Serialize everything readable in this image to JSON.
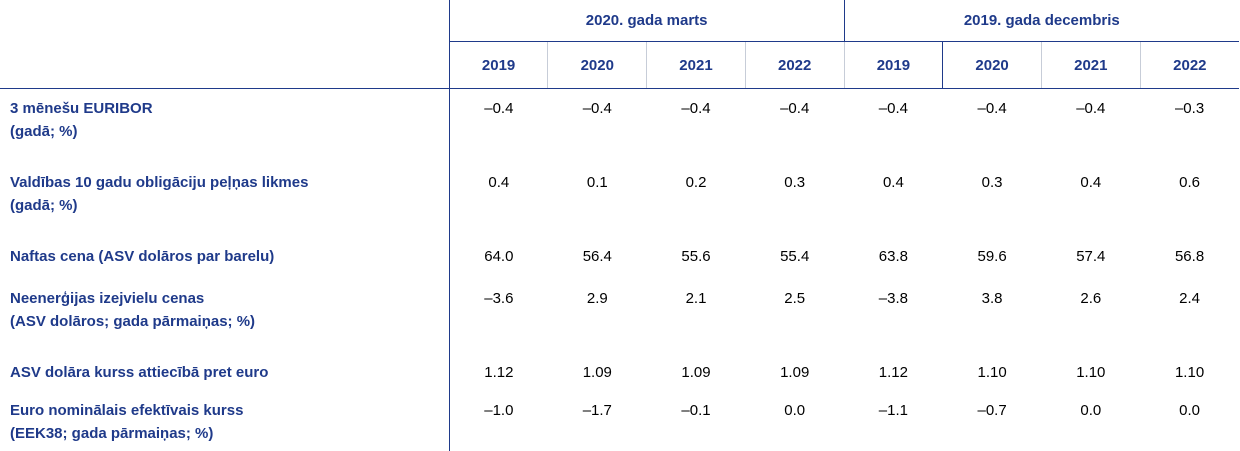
{
  "groups": [
    "2020. gada marts",
    "2019. gada decembris"
  ],
  "years": [
    "2019",
    "2020",
    "2021",
    "2022",
    "2019",
    "2020",
    "2021",
    "2022"
  ],
  "rows": [
    {
      "label": "3 mēnešu EURIBOR",
      "sublabel": "(gadā; %)",
      "values": [
        "–0.4",
        "–0.4",
        "–0.4",
        "–0.4",
        "–0.4",
        "–0.4",
        "–0.4",
        "–0.3"
      ]
    },
    {
      "label": "Valdības 10 gadu obligāciju peļņas likmes",
      "sublabel": "(gadā; %)",
      "values": [
        "0.4",
        "0.1",
        "0.2",
        "0.3",
        "0.4",
        "0.3",
        "0.4",
        "0.6"
      ]
    },
    {
      "label": "Naftas cena (ASV dolāros par barelu)",
      "sublabel": "",
      "values": [
        "64.0",
        "56.4",
        "55.6",
        "55.4",
        "63.8",
        "59.6",
        "57.4",
        "56.8"
      ]
    },
    {
      "label": "Neenerģijas izejvielu cenas",
      "sublabel": "(ASV dolāros; gada pārmaiņas; %)",
      "values": [
        "–3.6",
        "2.9",
        "2.1",
        "2.5",
        "–3.8",
        "3.8",
        "2.6",
        "2.4"
      ]
    },
    {
      "label": "ASV dolāra kurss attiecībā pret euro",
      "sublabel": "",
      "values": [
        "1.12",
        "1.09",
        "1.09",
        "1.09",
        "1.12",
        "1.10",
        "1.10",
        "1.10"
      ]
    },
    {
      "label": "Euro nominālais efektīvais kurss",
      "sublabel": "(EEK38; gada pārmaiņas; %)",
      "values": [
        "–1.0",
        "–1.7",
        "–0.1",
        "0.0",
        "–1.1",
        "–0.7",
        "0.0",
        "0.0"
      ]
    }
  ]
}
